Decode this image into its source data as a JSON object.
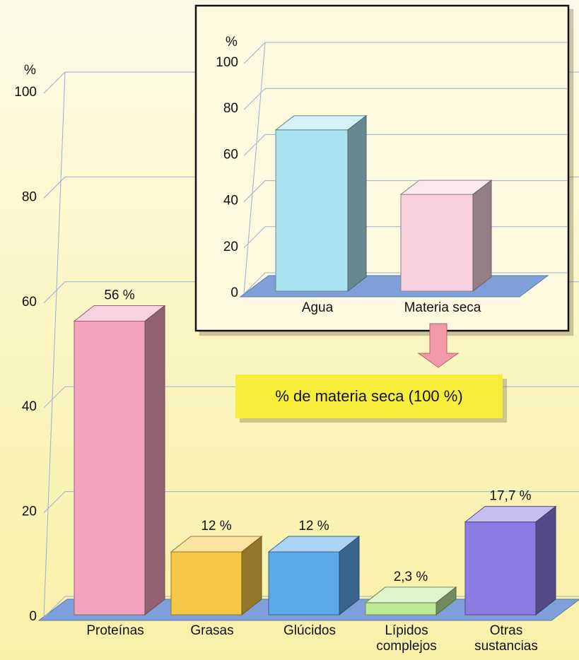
{
  "chart_data": [
    {
      "type": "bar",
      "ylabel": "%",
      "categories": [
        "Proteínas",
        "Grasas",
        "Glúcidos",
        "Lípidos complejos",
        "Otras sustancias"
      ],
      "values": [
        56,
        12,
        12,
        2.3,
        17.7
      ],
      "value_labels": [
        "56 %",
        "12 %",
        "12 %",
        "2,3 %",
        "17,7 %"
      ],
      "colors": [
        "#f4a3bf",
        "#f6c746",
        "#5ba9e8",
        "#bde896",
        "#8c7ce2"
      ],
      "ylim": [
        0,
        100
      ],
      "yticks": [
        0,
        20,
        40,
        60,
        80,
        100
      ],
      "grid": true,
      "annotation": "% de materia seca (100 %)"
    },
    {
      "type": "bar",
      "ylabel": "%",
      "categories": [
        "Agua",
        "Materia seca"
      ],
      "values": [
        70,
        42
      ],
      "colors": [
        "#a9e2ef",
        "#f7d2de"
      ],
      "ylim": [
        0,
        100
      ],
      "yticks": [
        0,
        20,
        40,
        60,
        80,
        100
      ],
      "grid": true
    }
  ]
}
